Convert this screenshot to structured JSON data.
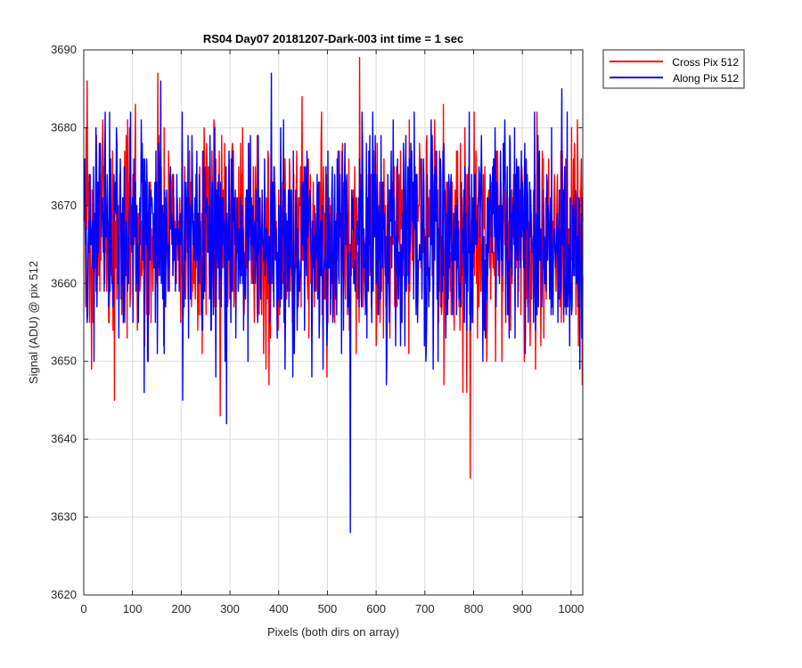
{
  "chart_data": {
    "type": "line",
    "title": "RS04 Day07 20181207-Dark-003 int time = 1 sec",
    "xlabel": "Pixels (both dirs on array)",
    "ylabel": "Signal (ADU) @ pix 512",
    "xlim": [
      0,
      1024
    ],
    "ylim": [
      3620,
      3690
    ],
    "xticks": [
      0,
      100,
      200,
      300,
      400,
      500,
      600,
      700,
      800,
      900,
      1000
    ],
    "yticks": [
      3620,
      3630,
      3640,
      3650,
      3660,
      3670,
      3680,
      3690
    ],
    "grid": true,
    "legend_position": "outside top-right",
    "x_range": [
      1,
      1024
    ],
    "series": [
      {
        "name": "Cross Pix 512",
        "color": "#ff0000",
        "mean": 3666,
        "max": 3689,
        "min": 3635,
        "notable_points": [
          {
            "x": 566,
            "y": 3689
          },
          {
            "x": 152,
            "y": 3687
          },
          {
            "x": 7,
            "y": 3686
          },
          {
            "x": 63,
            "y": 3645
          },
          {
            "x": 280,
            "y": 3643
          },
          {
            "x": 786,
            "y": 3646
          },
          {
            "x": 793,
            "y": 3635
          },
          {
            "x": 1023,
            "y": 3647
          }
        ]
      },
      {
        "name": "Along Pix 512",
        "color": "#0000ff",
        "mean": 3666,
        "max": 3687,
        "min": 3628,
        "notable_points": [
          {
            "x": 385,
            "y": 3687
          },
          {
            "x": 158,
            "y": 3686
          },
          {
            "x": 981,
            "y": 3685
          },
          {
            "x": 203,
            "y": 3645
          },
          {
            "x": 293,
            "y": 3642
          },
          {
            "x": 547,
            "y": 3628
          },
          {
            "x": 1018,
            "y": 3649
          }
        ]
      }
    ]
  }
}
